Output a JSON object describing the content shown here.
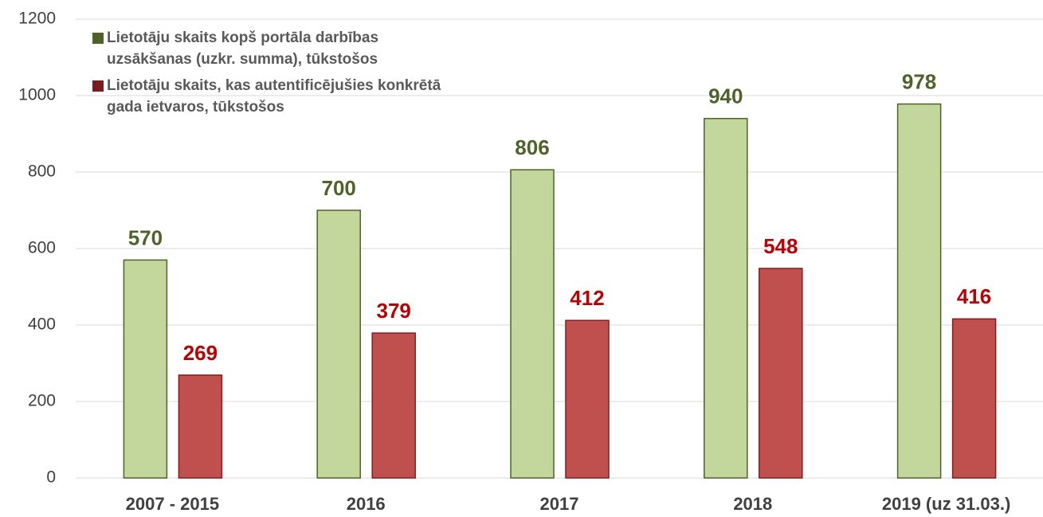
{
  "chart_data": {
    "type": "bar",
    "categories": [
      "2007 - 2015",
      "2016",
      "2017",
      "2018",
      "2019 (uz 31.03.)"
    ],
    "series": [
      {
        "name": "Lietotāju skaits kopš portāla darbības uzsākšanas (uzkr. summa), tūkstošos",
        "color": "#c3d69b",
        "values": [
          570,
          700,
          806,
          940,
          978
        ]
      },
      {
        "name": "Lietotāju skaits, kas autentificējušies konkrētā gada ietvaros, tūkstošos",
        "color": "#c0504d",
        "values": [
          269,
          379,
          412,
          548,
          416
        ]
      }
    ],
    "ylim": [
      0,
      1200
    ],
    "yticks": [
      0,
      200,
      400,
      600,
      800,
      1000,
      1200
    ],
    "grid": true,
    "legend": "top-left"
  }
}
